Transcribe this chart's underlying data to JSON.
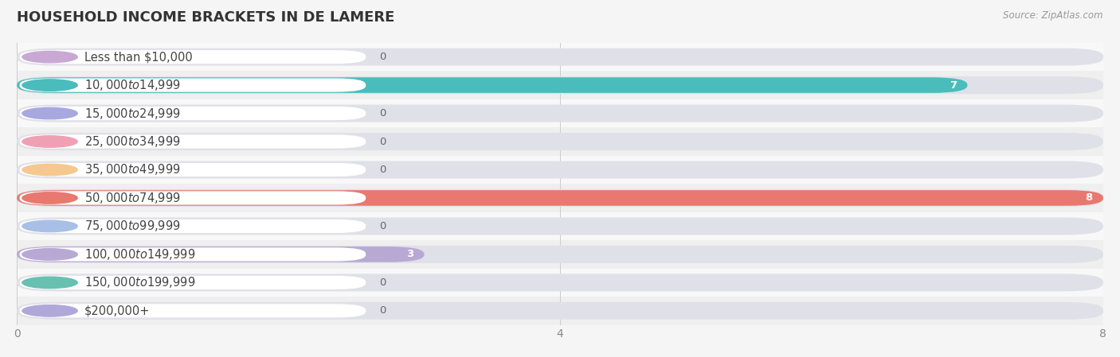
{
  "title": "HOUSEHOLD INCOME BRACKETS IN DE LAMERE",
  "source": "Source: ZipAtlas.com",
  "categories": [
    "Less than $10,000",
    "$10,000 to $14,999",
    "$15,000 to $24,999",
    "$25,000 to $34,999",
    "$35,000 to $49,999",
    "$50,000 to $74,999",
    "$75,000 to $99,999",
    "$100,000 to $149,999",
    "$150,000 to $199,999",
    "$200,000+"
  ],
  "values": [
    0,
    7,
    0,
    0,
    0,
    8,
    0,
    3,
    0,
    0
  ],
  "bar_colors": [
    "#c9a8d4",
    "#4abcbc",
    "#a8a8e0",
    "#f0a0b4",
    "#f5c890",
    "#e87870",
    "#a8c0e8",
    "#b8a8d4",
    "#68c0b0",
    "#b0a8d8"
  ],
  "row_bg_even": "#f8f8f8",
  "row_bg_odd": "#efefef",
  "track_color": "#e0e0e8",
  "pill_bg": "#ffffff",
  "xlim": [
    0,
    8
  ],
  "xticks": [
    0,
    4,
    8
  ],
  "background_color": "#f5f5f5",
  "title_fontsize": 13,
  "label_fontsize": 10.5,
  "value_fontsize": 9.5
}
